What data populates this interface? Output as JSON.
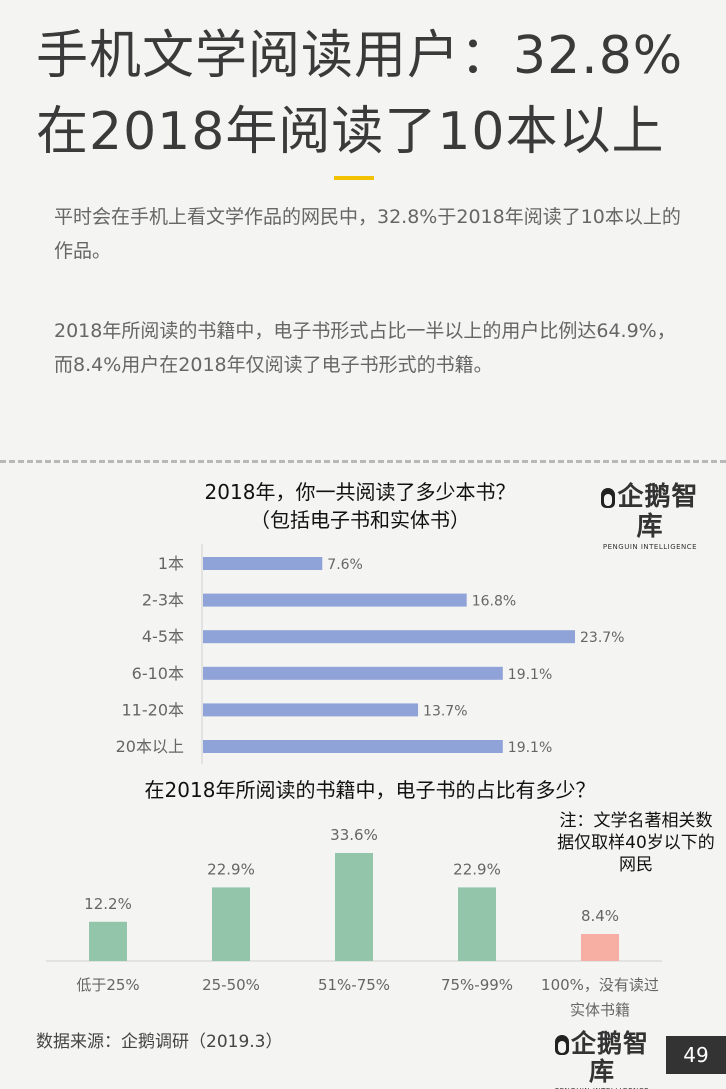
{
  "title": {
    "line1": "手机文学阅读用户：32.8%",
    "line2": "在2018年阅读了10本以上"
  },
  "paragraphs": [
    "平时会在手机上看文学作品的网民中，32.8%于2018年阅读了10本以上的作品。",
    "2018年所阅读的书籍中，电子书形式占比一半以上的用户比例达64.9%，而8.4%用户在2018年仅阅读了电子书形式的书籍。"
  ],
  "logo": {
    "main": "企鹅智库",
    "sub": "PENGUIN INTELLIGENCE"
  },
  "chart_data": [
    {
      "type": "bar",
      "orientation": "horizontal",
      "title_line1": "2018年，你一共阅读了多少本书？",
      "title_line2": "（包括电子书和实体书）",
      "categories": [
        "1本",
        "2-3本",
        "4-5本",
        "6-10本",
        "11-20本",
        "20本以上"
      ],
      "values": [
        7.6,
        16.8,
        23.7,
        19.1,
        13.7,
        19.1
      ],
      "value_labels": [
        "7.6%",
        "16.8%",
        "23.7%",
        "19.1%",
        "13.7%",
        "19.1%"
      ],
      "unit": "%",
      "xlim": [
        0,
        25
      ],
      "colors": {
        "bar": "#8fa3d9"
      }
    },
    {
      "type": "bar",
      "orientation": "vertical",
      "title": "在2018年所阅读的书籍中，电子书的占比有多少？",
      "categories": [
        "低于25%",
        "25-50%",
        "51%-75%",
        "75%-99%",
        "100%，没有读过实体书籍"
      ],
      "category_lines": [
        [
          "低于25%"
        ],
        [
          "25-50%"
        ],
        [
          "51%-75%"
        ],
        [
          "75%-99%"
        ],
        [
          "100%，没有读过",
          "实体书籍"
        ]
      ],
      "values": [
        12.2,
        22.9,
        33.6,
        22.9,
        8.4
      ],
      "value_labels": [
        "12.2%",
        "22.9%",
        "33.6%",
        "22.9%",
        "8.4%"
      ],
      "unit": "%",
      "ylim": [
        0,
        33.6
      ],
      "colors": {
        "bar": "#93c5ab",
        "highlight": "#f7aea3"
      }
    }
  ],
  "note": "注：文学名著相关数据仅取样40岁以下的网民",
  "source": "数据来源：企鹅调研（2019.3）",
  "page_number": "49"
}
